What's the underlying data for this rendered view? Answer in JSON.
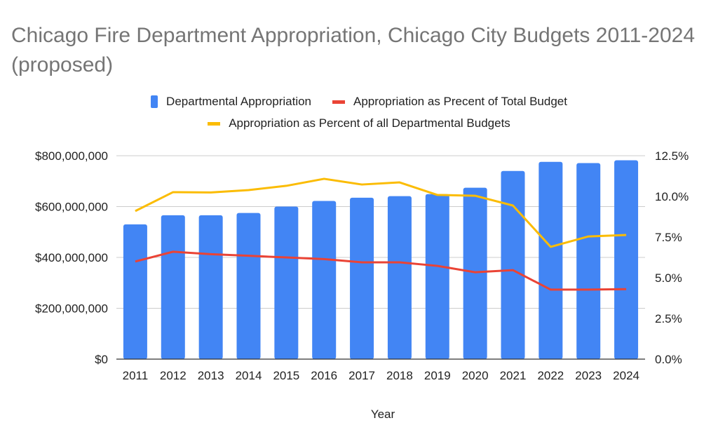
{
  "chart_data": {
    "type": "bar",
    "title": "Chicago Fire Department Appropriation, Chicago City Budgets 2011-2024 (proposed)",
    "xlabel": "Year",
    "ylabel": "",
    "y2label": "",
    "categories": [
      "2011",
      "2012",
      "2013",
      "2014",
      "2015",
      "2016",
      "2017",
      "2018",
      "2019",
      "2020",
      "2021",
      "2022",
      "2023",
      "2024"
    ],
    "series": [
      {
        "name": "Departmental Appropriation",
        "type": "bar",
        "axis": "left",
        "color": "#4285F4",
        "values": [
          530000000,
          566000000,
          566000000,
          575000000,
          600000000,
          622000000,
          635000000,
          641000000,
          649000000,
          674000000,
          740000000,
          776000000,
          771000000,
          782000000
        ]
      },
      {
        "name": "Appropriation as Precent of Total Budget",
        "type": "line",
        "axis": "right",
        "color": "#EA4335",
        "values": [
          6.0,
          6.6,
          6.45,
          6.35,
          6.25,
          6.15,
          5.95,
          5.95,
          5.73,
          5.34,
          5.47,
          4.27,
          4.27,
          4.3
        ]
      },
      {
        "name": "Appropriation as Percent of all Departmental Budgets",
        "type": "line",
        "axis": "right",
        "color": "#FBBC04",
        "values": [
          9.1,
          10.26,
          10.24,
          10.39,
          10.65,
          11.08,
          10.73,
          10.86,
          10.09,
          10.04,
          9.44,
          6.9,
          7.54,
          7.63
        ]
      }
    ],
    "ylim": [
      0,
      800000000
    ],
    "y2lim": [
      0,
      12.5
    ],
    "yticks": [
      "$0",
      "$200,000,000",
      "$400,000,000",
      "$600,000,000",
      "$800,000,000"
    ],
    "ytick_values": [
      0,
      200000000,
      400000000,
      600000000,
      800000000
    ],
    "y2ticks": [
      "0.0%",
      "2.5%",
      "5.0%",
      "7.5%",
      "10.0%",
      "12.5%"
    ],
    "y2tick_values": [
      0,
      2.5,
      5,
      7.5,
      10,
      12.5
    ],
    "grid": true,
    "legend_position": "top-center"
  },
  "colors": {
    "title": "#757575",
    "grid": "#cccccc",
    "axis": "#333333"
  }
}
